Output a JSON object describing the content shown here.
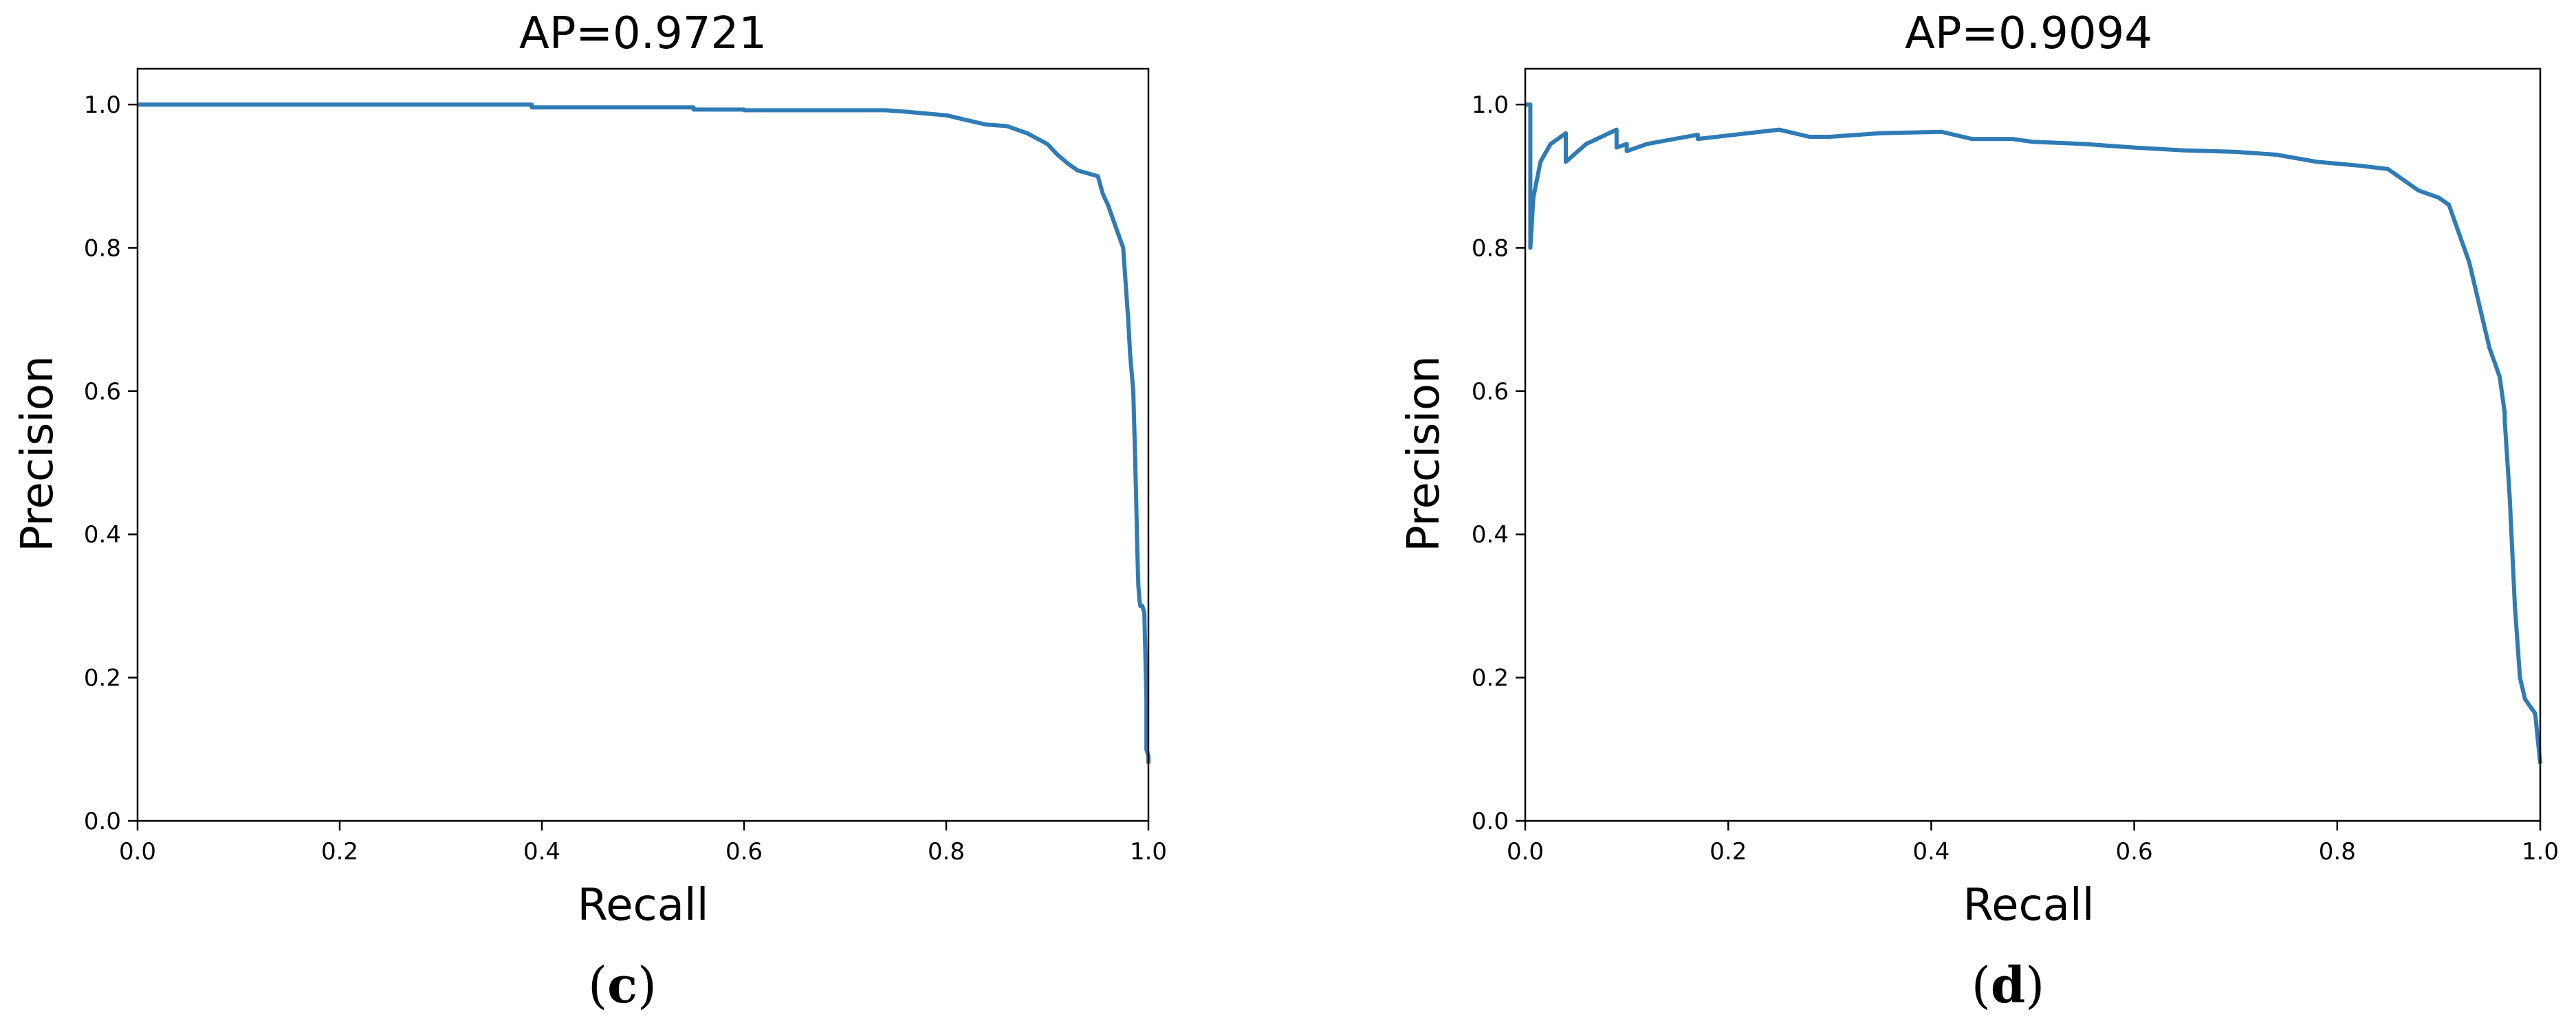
{
  "chart_data": [
    {
      "type": "line",
      "title": "AP=0.9721",
      "xlabel": "Recall",
      "ylabel": "Precision",
      "panel_label": {
        "open": "(",
        "letter": "c",
        "close": ")"
      },
      "xlim": [
        0,
        1
      ],
      "ylim": [
        0,
        1.05
      ],
      "xticks": [
        "0.0",
        "0.2",
        "0.4",
        "0.6",
        "0.8",
        "1.0"
      ],
      "yticks": [
        "0.0",
        "0.2",
        "0.4",
        "0.6",
        "0.8",
        "1.0"
      ],
      "grid": false,
      "color": "#2e7bb5",
      "series": [
        {
          "x": [
            0.0,
            0.39,
            0.39,
            0.55,
            0.55,
            0.6,
            0.6,
            0.74,
            0.76,
            0.8,
            0.83,
            0.84,
            0.86,
            0.88,
            0.9,
            0.91,
            0.92,
            0.93,
            0.95,
            0.955,
            0.96,
            0.965,
            0.97,
            0.975,
            0.98,
            0.982,
            0.985,
            0.987,
            0.988,
            0.989,
            0.99,
            0.991,
            0.992,
            0.994,
            0.996,
            0.998,
            0.998,
            1.0,
            1.0
          ],
          "y": [
            1.0,
            1.0,
            0.996,
            0.996,
            0.993,
            0.993,
            0.992,
            0.992,
            0.99,
            0.985,
            0.975,
            0.972,
            0.97,
            0.96,
            0.945,
            0.93,
            0.918,
            0.908,
            0.9,
            0.875,
            0.86,
            0.84,
            0.82,
            0.8,
            0.7,
            0.65,
            0.6,
            0.5,
            0.44,
            0.38,
            0.33,
            0.31,
            0.3,
            0.3,
            0.29,
            0.17,
            0.1,
            0.09,
            0.08
          ]
        }
      ]
    },
    {
      "type": "line",
      "title": "AP=0.9094",
      "xlabel": "Recall",
      "ylabel": "Precision",
      "panel_label": {
        "open": "(",
        "letter": "d",
        "close": ")"
      },
      "xlim": [
        0,
        1
      ],
      "ylim": [
        0,
        1.05
      ],
      "xticks": [
        "0.0",
        "0.2",
        "0.4",
        "0.6",
        "0.8",
        "1.0"
      ],
      "yticks": [
        "0.0",
        "0.2",
        "0.4",
        "0.6",
        "0.8",
        "1.0"
      ],
      "grid": false,
      "color": "#2e7bb5",
      "series": [
        {
          "x": [
            0.0,
            0.005,
            0.005,
            0.008,
            0.015,
            0.025,
            0.04,
            0.04,
            0.06,
            0.09,
            0.09,
            0.1,
            0.1,
            0.12,
            0.17,
            0.17,
            0.25,
            0.28,
            0.3,
            0.35,
            0.41,
            0.44,
            0.48,
            0.5,
            0.55,
            0.6,
            0.65,
            0.7,
            0.74,
            0.78,
            0.82,
            0.85,
            0.87,
            0.88,
            0.9,
            0.91,
            0.92,
            0.93,
            0.94,
            0.95,
            0.96,
            0.965,
            0.965,
            0.97,
            0.975,
            0.98,
            0.985,
            0.99,
            0.995,
            1.0
          ],
          "y": [
            1.0,
            1.0,
            0.8,
            0.87,
            0.92,
            0.945,
            0.96,
            0.92,
            0.945,
            0.965,
            0.94,
            0.945,
            0.935,
            0.945,
            0.958,
            0.952,
            0.965,
            0.955,
            0.955,
            0.96,
            0.962,
            0.952,
            0.952,
            0.948,
            0.945,
            0.94,
            0.936,
            0.934,
            0.93,
            0.92,
            0.915,
            0.91,
            0.89,
            0.88,
            0.87,
            0.86,
            0.82,
            0.78,
            0.72,
            0.66,
            0.62,
            0.57,
            0.56,
            0.45,
            0.3,
            0.2,
            0.17,
            0.16,
            0.15,
            0.08
          ]
        }
      ]
    }
  ]
}
